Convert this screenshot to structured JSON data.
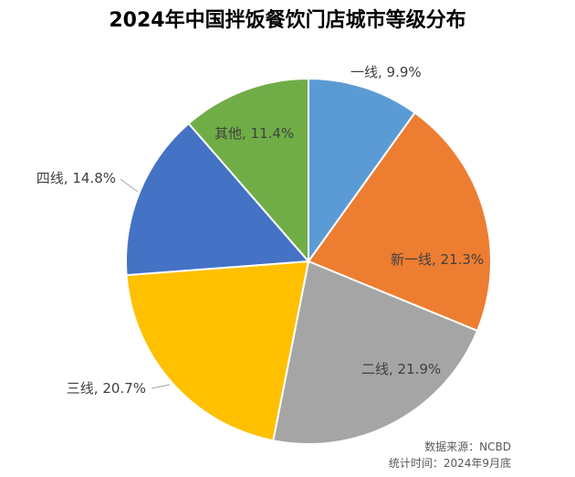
{
  "chart_data": {
    "type": "pie",
    "title": "2024年中国拌饭餐饮门店城市等级分布",
    "slices": [
      {
        "name": "一线",
        "value": 9.9,
        "label": "一线, 9.9%",
        "color": "#5B9BD5"
      },
      {
        "name": "新一线",
        "value": 21.3,
        "label": "新一线, 21.3%",
        "color": "#ED7D31"
      },
      {
        "name": "二线",
        "value": 21.9,
        "label": "二线, 21.9%",
        "color": "#A5A5A5"
      },
      {
        "name": "三线",
        "value": 20.7,
        "label": "三线, 20.7%",
        "color": "#FFC000"
      },
      {
        "name": "四线",
        "value": 14.8,
        "label": "四线, 14.8%",
        "color": "#4472C4"
      },
      {
        "name": "其他",
        "value": 11.4,
        "label": "其他, 11.4%",
        "color": "#70AD47"
      }
    ],
    "source_text": "数据来源：NCBD",
    "time_text": "统计时间：2024年9月底"
  }
}
